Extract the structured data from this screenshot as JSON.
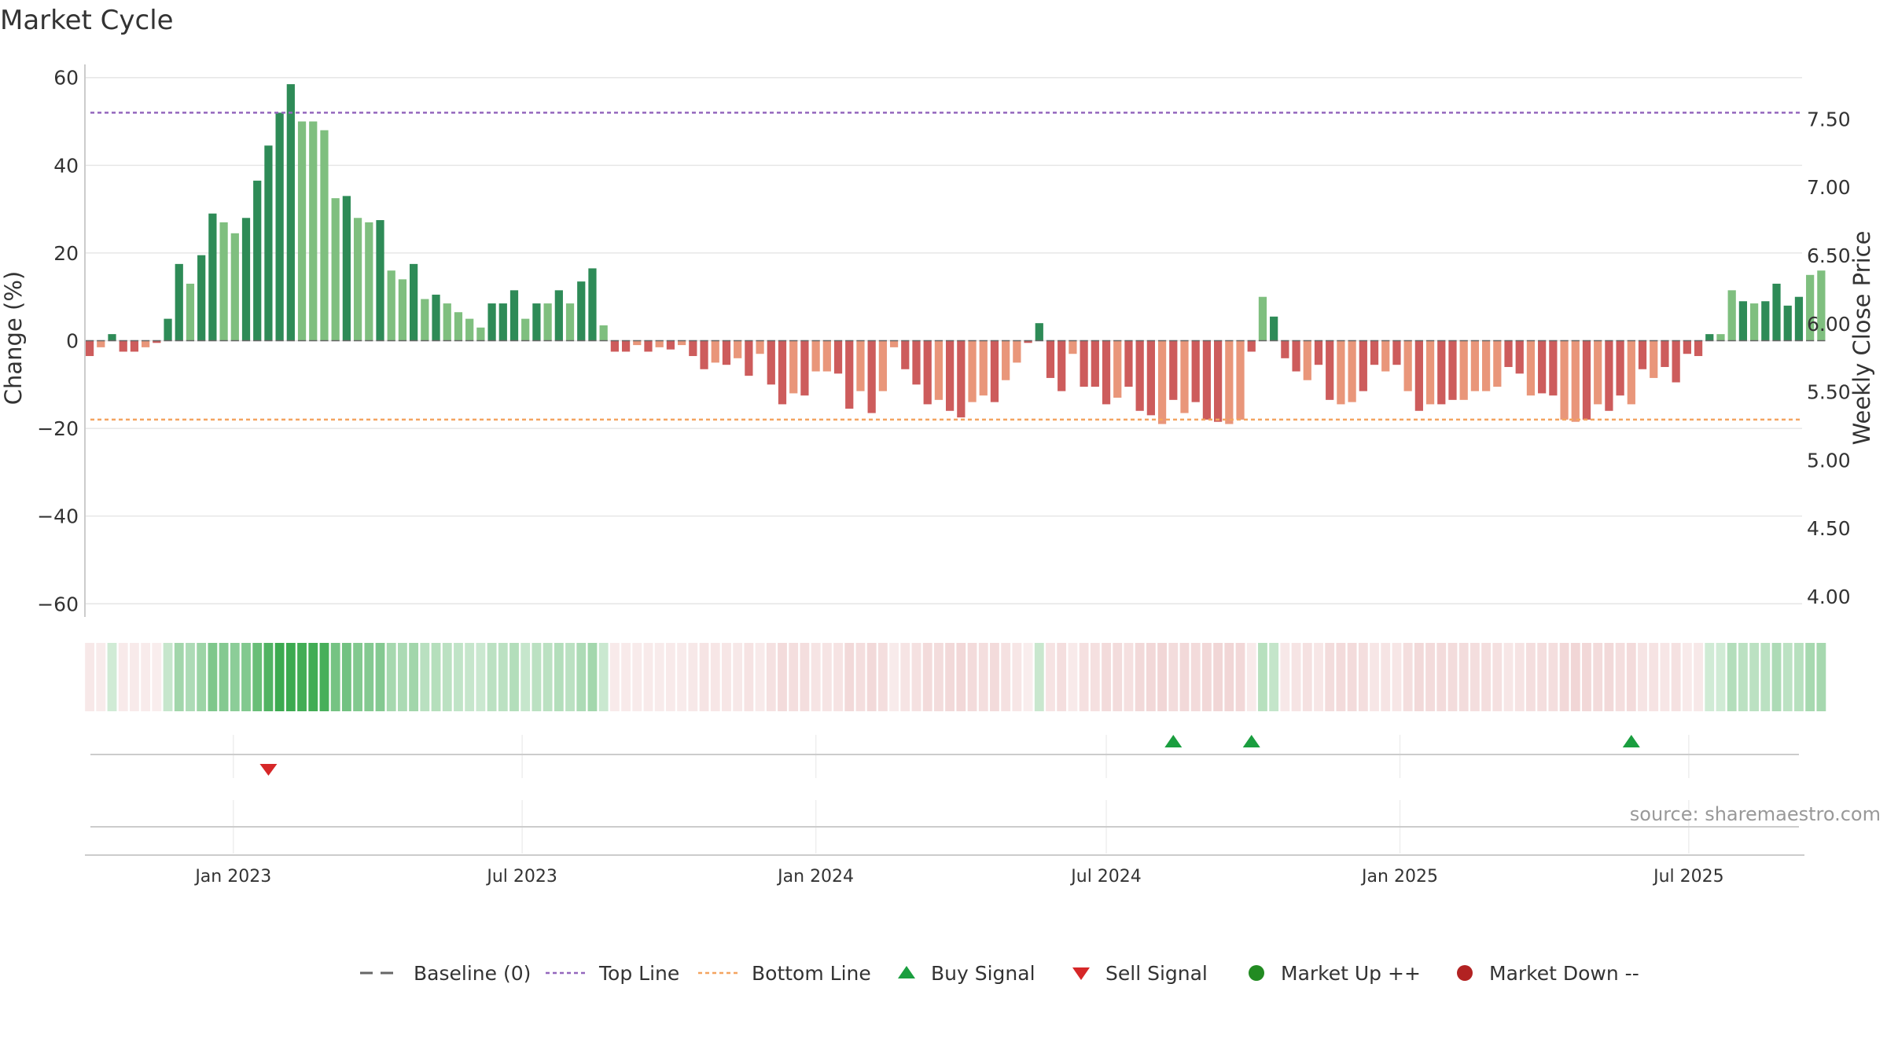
{
  "title": "Market Cycle",
  "source": "source: sharemaestro.com",
  "colors": {
    "up_strong": "#2e8b57",
    "up_light": "#7fbf7f",
    "down_strong": "#cd5c5c",
    "down_light": "#e9967a",
    "top_line": "#9467bd",
    "bottom_line": "#f4a460",
    "buy": "#1a9e3f",
    "sell": "#d62728",
    "market_up": "#228b22",
    "market_down": "#b22222"
  },
  "legend": [
    {
      "label": "Baseline (0)",
      "icon": "dash-line"
    },
    {
      "label": "Top Line",
      "icon": "purple-dotted-line"
    },
    {
      "label": "Bottom Line",
      "icon": "orange-dotted-line"
    },
    {
      "label": "Buy Signal",
      "icon": "triangle-up"
    },
    {
      "label": "Sell Signal",
      "icon": "triangle-down"
    },
    {
      "label": "Market Up ++",
      "icon": "green-dot"
    },
    {
      "label": "Market Down --",
      "icon": "red-dot"
    }
  ],
  "chart_data": {
    "type": "bar",
    "title": "Market Cycle",
    "xlabel": "",
    "ylabel": "Change (%)",
    "y2label": "Weekly Close Price",
    "ylim": [
      -63,
      63
    ],
    "y2lim": [
      3.85,
      7.9
    ],
    "yticks": [
      60,
      40,
      20,
      0,
      -20,
      -40,
      -60
    ],
    "ytick_labels": [
      "60",
      "40",
      "20",
      "0",
      "−20",
      "−40",
      "−60"
    ],
    "y2ticks": [
      7.5,
      7.0,
      6.5,
      6.0,
      5.5,
      5.0,
      4.5,
      4.0
    ],
    "y2tick_labels": [
      "7.50",
      "7.00",
      "6.50",
      "6.00",
      "5.50",
      "5.00",
      "4.50",
      "4.00"
    ],
    "x_start": "2022-09-30",
    "x_end": "2025-09-10",
    "xticks": [
      "2023-01-01",
      "2023-07-01",
      "2024-01-01",
      "2024-07-01",
      "2025-01-01",
      "2025-07-01"
    ],
    "xtick_labels": [
      "Jan 2023",
      "Jul 2023",
      "Jan 2024",
      "Jul 2024",
      "Jan 2025",
      "Jul 2025"
    ],
    "first_week": "2022-10-03",
    "top_line": 52,
    "bottom_line": -18,
    "values": [
      -3.5,
      -1.5,
      1.5,
      -2.5,
      -2.5,
      -1.5,
      -0.5,
      5,
      17.5,
      13,
      19.5,
      29,
      27,
      24.5,
      28,
      36.5,
      44.5,
      52,
      58.5,
      50,
      50,
      48,
      32.5,
      33,
      28,
      27,
      27.5,
      16,
      14,
      17.5,
      9.5,
      10.5,
      8.5,
      6.5,
      5,
      3,
      8.5,
      8.5,
      11.5,
      5,
      8.5,
      8.5,
      11.5,
      8.5,
      13.5,
      16.5,
      3.5,
      -2.5,
      -2.5,
      -1,
      -2.5,
      -1.5,
      -2,
      -1,
      -3.5,
      -6.5,
      -5,
      -5.5,
      -4,
      -8,
      -3,
      -10,
      -14.5,
      -12,
      -12.5,
      -7,
      -7,
      -7.5,
      -15.5,
      -11.5,
      -16.5,
      -11.5,
      -1.5,
      -6.5,
      -10,
      -14.5,
      -13.5,
      -16,
      -17.5,
      -14,
      -12.5,
      -14,
      -9,
      -5,
      -0.5,
      4,
      -8.5,
      -11.5,
      -3,
      -10.5,
      -10.5,
      -14.5,
      -13,
      -10.5,
      -16,
      -17,
      -19,
      -13.5,
      -16.5,
      -14,
      -18,
      -18.5,
      -19,
      -18,
      -2.5,
      10,
      5.5,
      -4,
      -7,
      -9,
      -5.5,
      -13.5,
      -14.5,
      -14,
      -11.5,
      -5.5,
      -7,
      -5.5,
      -11.5,
      -16,
      -14.5,
      -14.5,
      -13.5,
      -13.5,
      -11.5,
      -11.5,
      -10.5,
      -6,
      -7.5,
      -12.5,
      -12,
      -12.5,
      -18,
      -18.5,
      -18,
      -14.5,
      -16,
      -12.5,
      -14.5,
      -6.5,
      -8.5,
      -6,
      -9.5,
      -3,
      -3.5,
      1.5,
      1.5,
      11.5,
      9,
      8.5,
      9,
      13,
      8,
      10,
      15,
      16
    ],
    "strong": [
      1,
      0,
      1,
      1,
      1,
      0,
      1,
      1,
      1,
      0,
      1,
      1,
      0,
      0,
      1,
      1,
      1,
      1,
      1,
      0,
      0,
      0,
      0,
      1,
      0,
      0,
      1,
      0,
      0,
      1,
      0,
      1,
      0,
      0,
      0,
      0,
      1,
      1,
      1,
      0,
      1,
      0,
      1,
      0,
      1,
      1,
      0,
      1,
      1,
      0,
      1,
      0,
      1,
      0,
      1,
      1,
      0,
      1,
      0,
      1,
      0,
      1,
      1,
      0,
      1,
      0,
      0,
      1,
      1,
      0,
      1,
      0,
      0,
      1,
      1,
      1,
      0,
      1,
      1,
      0,
      0,
      1,
      0,
      0,
      1,
      1,
      1,
      1,
      0,
      1,
      1,
      1,
      0,
      1,
      1,
      1,
      0,
      1,
      0,
      1,
      1,
      1,
      0,
      0,
      1,
      0,
      1,
      1,
      1,
      0,
      1,
      1,
      0,
      0,
      1,
      1,
      0,
      1,
      0,
      1,
      0,
      1,
      1,
      0,
      0,
      0,
      0,
      1,
      1,
      0,
      1,
      1,
      0,
      0,
      1,
      0,
      1,
      1,
      0,
      1,
      0,
      1,
      1,
      1,
      1,
      1,
      0,
      0,
      1,
      0,
      1,
      1,
      1,
      1
    ],
    "buy_signals": [
      "2024-08-12",
      "2024-09-30",
      "2025-05-26"
    ],
    "sell_signals": [
      "2023-01-23"
    ]
  }
}
